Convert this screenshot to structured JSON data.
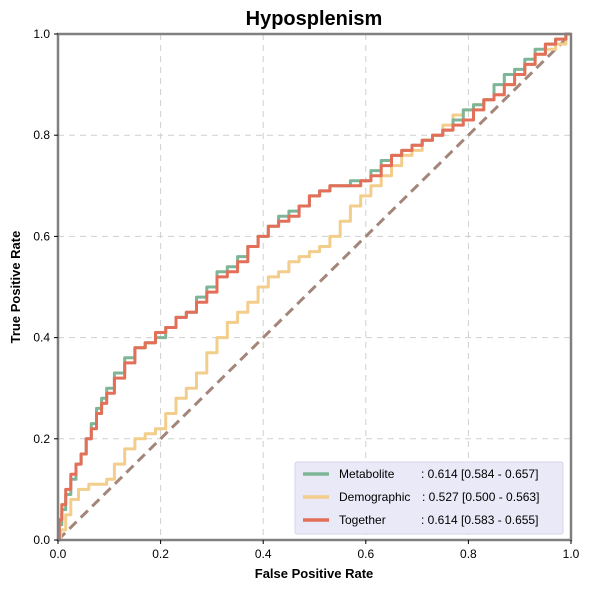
{
  "chart_data": {
    "type": "line",
    "title": "Hyposplenism",
    "xlabel": "False Positive Rate",
    "ylabel": "True Positive Rate",
    "xlim": [
      0,
      1
    ],
    "ylim": [
      0,
      1
    ],
    "xticks": [
      "0.0",
      "0.2",
      "0.4",
      "0.6",
      "0.8",
      "1.0"
    ],
    "yticks": [
      "0.0",
      "0.2",
      "0.4",
      "0.6",
      "0.8",
      "1.0"
    ],
    "grid": true,
    "legend_position": "bottom-right",
    "series": [
      {
        "name": "Metabolite",
        "label": ": 0.614 [0.584 - 0.657]",
        "color": "#7fb597",
        "x": [
          0,
          0.005,
          0.01,
          0.02,
          0.03,
          0.04,
          0.05,
          0.06,
          0.07,
          0.08,
          0.09,
          0.1,
          0.12,
          0.14,
          0.16,
          0.18,
          0.2,
          0.22,
          0.24,
          0.26,
          0.28,
          0.3,
          0.32,
          0.34,
          0.36,
          0.38,
          0.4,
          0.42,
          0.44,
          0.46,
          0.48,
          0.5,
          0.52,
          0.54,
          0.56,
          0.58,
          0.6,
          0.62,
          0.64,
          0.66,
          0.68,
          0.7,
          0.72,
          0.74,
          0.76,
          0.78,
          0.8,
          0.82,
          0.84,
          0.86,
          0.88,
          0.9,
          0.92,
          0.94,
          0.96,
          0.98,
          1.0
        ],
        "y": [
          0,
          0.03,
          0.06,
          0.09,
          0.12,
          0.15,
          0.17,
          0.2,
          0.23,
          0.26,
          0.28,
          0.3,
          0.33,
          0.36,
          0.38,
          0.39,
          0.4,
          0.42,
          0.44,
          0.45,
          0.48,
          0.5,
          0.53,
          0.54,
          0.56,
          0.58,
          0.6,
          0.62,
          0.64,
          0.65,
          0.66,
          0.68,
          0.69,
          0.7,
          0.7,
          0.71,
          0.71,
          0.73,
          0.75,
          0.76,
          0.77,
          0.78,
          0.79,
          0.8,
          0.81,
          0.83,
          0.85,
          0.86,
          0.87,
          0.9,
          0.92,
          0.93,
          0.95,
          0.97,
          0.98,
          0.99,
          1.0
        ]
      },
      {
        "name": "Demographic",
        "label": ": 0.527 [0.500 - 0.563]",
        "color": "#f2cd8b",
        "x": [
          0,
          0.01,
          0.02,
          0.03,
          0.05,
          0.07,
          0.09,
          0.1,
          0.12,
          0.14,
          0.16,
          0.18,
          0.2,
          0.22,
          0.24,
          0.26,
          0.28,
          0.3,
          0.32,
          0.34,
          0.36,
          0.38,
          0.4,
          0.42,
          0.44,
          0.46,
          0.48,
          0.5,
          0.52,
          0.54,
          0.56,
          0.58,
          0.6,
          0.62,
          0.64,
          0.66,
          0.68,
          0.7,
          0.72,
          0.74,
          0.76,
          0.78,
          0.8,
          0.82,
          0.84,
          0.86,
          0.88,
          0.9,
          0.92,
          0.94,
          0.96,
          0.98,
          1.0
        ],
        "y": [
          0,
          0.02,
          0.05,
          0.08,
          0.1,
          0.11,
          0.11,
          0.12,
          0.15,
          0.18,
          0.2,
          0.21,
          0.22,
          0.25,
          0.28,
          0.3,
          0.33,
          0.37,
          0.4,
          0.43,
          0.45,
          0.47,
          0.5,
          0.52,
          0.53,
          0.55,
          0.56,
          0.57,
          0.58,
          0.6,
          0.63,
          0.66,
          0.68,
          0.7,
          0.72,
          0.74,
          0.76,
          0.77,
          0.79,
          0.8,
          0.82,
          0.84,
          0.85,
          0.86,
          0.87,
          0.88,
          0.9,
          0.92,
          0.94,
          0.96,
          0.97,
          0.98,
          1.0
        ]
      },
      {
        "name": "Together",
        "label": ": 0.614 [0.583 - 0.655]",
        "color": "#e36f59",
        "x": [
          0,
          0.005,
          0.01,
          0.02,
          0.03,
          0.04,
          0.05,
          0.06,
          0.07,
          0.08,
          0.09,
          0.1,
          0.12,
          0.14,
          0.16,
          0.18,
          0.2,
          0.22,
          0.24,
          0.26,
          0.28,
          0.3,
          0.32,
          0.34,
          0.36,
          0.38,
          0.4,
          0.42,
          0.44,
          0.46,
          0.48,
          0.5,
          0.52,
          0.54,
          0.56,
          0.58,
          0.6,
          0.62,
          0.64,
          0.66,
          0.68,
          0.7,
          0.72,
          0.74,
          0.76,
          0.78,
          0.8,
          0.82,
          0.84,
          0.86,
          0.88,
          0.9,
          0.92,
          0.94,
          0.96,
          0.98,
          1.0
        ],
        "y": [
          0,
          0.04,
          0.07,
          0.1,
          0.13,
          0.15,
          0.17,
          0.2,
          0.22,
          0.25,
          0.27,
          0.29,
          0.32,
          0.35,
          0.38,
          0.39,
          0.41,
          0.42,
          0.44,
          0.45,
          0.47,
          0.49,
          0.52,
          0.53,
          0.55,
          0.58,
          0.6,
          0.62,
          0.63,
          0.64,
          0.66,
          0.68,
          0.69,
          0.7,
          0.7,
          0.7,
          0.71,
          0.72,
          0.74,
          0.76,
          0.77,
          0.78,
          0.79,
          0.8,
          0.81,
          0.82,
          0.83,
          0.85,
          0.87,
          0.88,
          0.9,
          0.92,
          0.94,
          0.96,
          0.98,
          0.99,
          1.0
        ]
      }
    ],
    "reference_line": {
      "x": [
        0,
        1
      ],
      "y": [
        0,
        1
      ],
      "color": "#a38679",
      "dash": true
    },
    "legend_bg": "#e9e9f7"
  }
}
